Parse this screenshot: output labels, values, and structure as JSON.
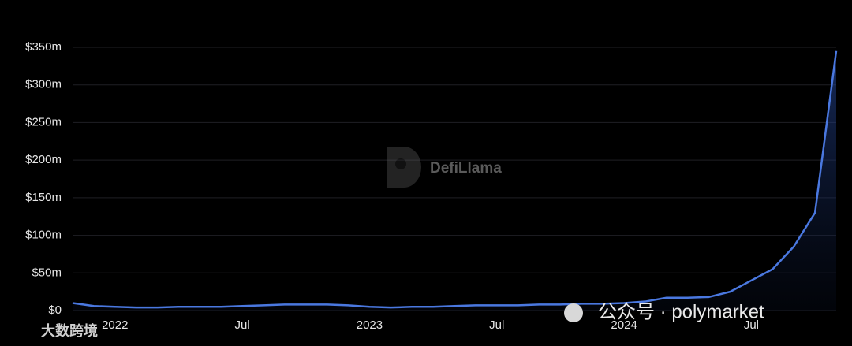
{
  "chart_data": {
    "type": "area",
    "x": [
      "2021-11",
      "2021-12",
      "2022-01",
      "2022-02",
      "2022-03",
      "2022-04",
      "2022-05",
      "2022-06",
      "2022-07",
      "2022-08",
      "2022-09",
      "2022-10",
      "2022-11",
      "2022-12",
      "2023-01",
      "2023-02",
      "2023-03",
      "2023-04",
      "2023-05",
      "2023-06",
      "2023-07",
      "2023-08",
      "2023-09",
      "2023-10",
      "2023-11",
      "2023-12",
      "2024-01",
      "2024-02",
      "2024-03",
      "2024-04",
      "2024-05",
      "2024-06",
      "2024-07",
      "2024-08",
      "2024-09",
      "2024-10",
      "2024-11"
    ],
    "values": [
      10000000,
      6000000,
      5000000,
      4000000,
      4000000,
      5000000,
      5000000,
      5000000,
      6000000,
      7000000,
      8000000,
      8000000,
      8000000,
      7000000,
      5000000,
      4000000,
      5000000,
      5000000,
      6000000,
      7000000,
      7000000,
      7000000,
      8000000,
      8000000,
      9000000,
      9000000,
      10000000,
      12000000,
      17000000,
      17000000,
      18000000,
      25000000,
      40000000,
      55000000,
      85000000,
      130000000,
      345000000
    ],
    "color": "#4a78e0",
    "ylim": [
      0,
      350000000
    ],
    "yticks": [
      {
        "value": 0,
        "label": "$0"
      },
      {
        "value": 50000000,
        "label": "$50m"
      },
      {
        "value": 100000000,
        "label": "$100m"
      },
      {
        "value": 150000000,
        "label": "$150m"
      },
      {
        "value": 200000000,
        "label": "$200m"
      },
      {
        "value": 250000000,
        "label": "$250m"
      },
      {
        "value": 300000000,
        "label": "$300m"
      },
      {
        "value": 350000000,
        "label": "$350m"
      }
    ],
    "xticks": [
      {
        "value": "2022-01",
        "label": "2022"
      },
      {
        "value": "2022-07",
        "label": "Jul"
      },
      {
        "value": "2023-01",
        "label": "2023"
      },
      {
        "value": "2023-07",
        "label": "Jul"
      },
      {
        "value": "2024-01",
        "label": "2024"
      },
      {
        "value": "2024-07",
        "label": "Jul"
      }
    ],
    "grid": true,
    "watermark": "DefiLlama",
    "overlay_texts": [
      "公众号 · polymarket",
      "大数跨境"
    ]
  }
}
